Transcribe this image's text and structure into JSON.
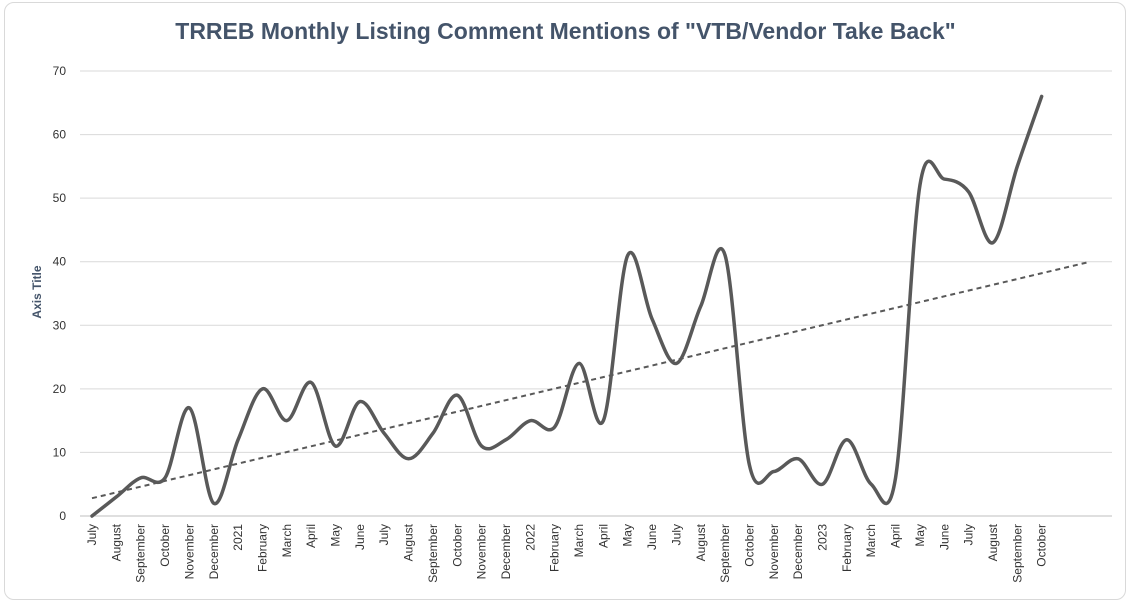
{
  "chart_data": {
    "type": "line",
    "title": "TRREB Monthly Listing Comment Mentions of \"VTB/Vendor Take Back\"",
    "xlabel": "",
    "ylabel": "Axis Title",
    "ylim": [
      0,
      70
    ],
    "yticks": [
      0,
      10,
      20,
      30,
      40,
      50,
      60,
      70
    ],
    "grid": true,
    "legend": "none",
    "categories": [
      "July",
      "August",
      "September",
      "October",
      "November",
      "December",
      "2021",
      "February",
      "March",
      "April",
      "May",
      "June",
      "July",
      "August",
      "September",
      "October",
      "November",
      "December",
      "2022",
      "February",
      "March",
      "April",
      "May",
      "June",
      "July",
      "August",
      "September",
      "October",
      "November",
      "December",
      "2023",
      "February",
      "March",
      "April",
      "May",
      "June",
      "July",
      "August",
      "September",
      "October"
    ],
    "series": [
      {
        "values": [
          0,
          3,
          6,
          6,
          17,
          2,
          12,
          20,
          15,
          21,
          11,
          18,
          13,
          9,
          13,
          19,
          11,
          12,
          15,
          14,
          24,
          15,
          41,
          31,
          24,
          33,
          41,
          8,
          7,
          9,
          5,
          12,
          5,
          6,
          52,
          53,
          51,
          43,
          55,
          66
        ],
        "color": "#595959",
        "style": "solid-smooth"
      },
      {
        "type": "trendline",
        "style": "dashed",
        "color": "#595959",
        "start": 2.8,
        "end": 40,
        "extends_to_category": 41
      }
    ]
  }
}
